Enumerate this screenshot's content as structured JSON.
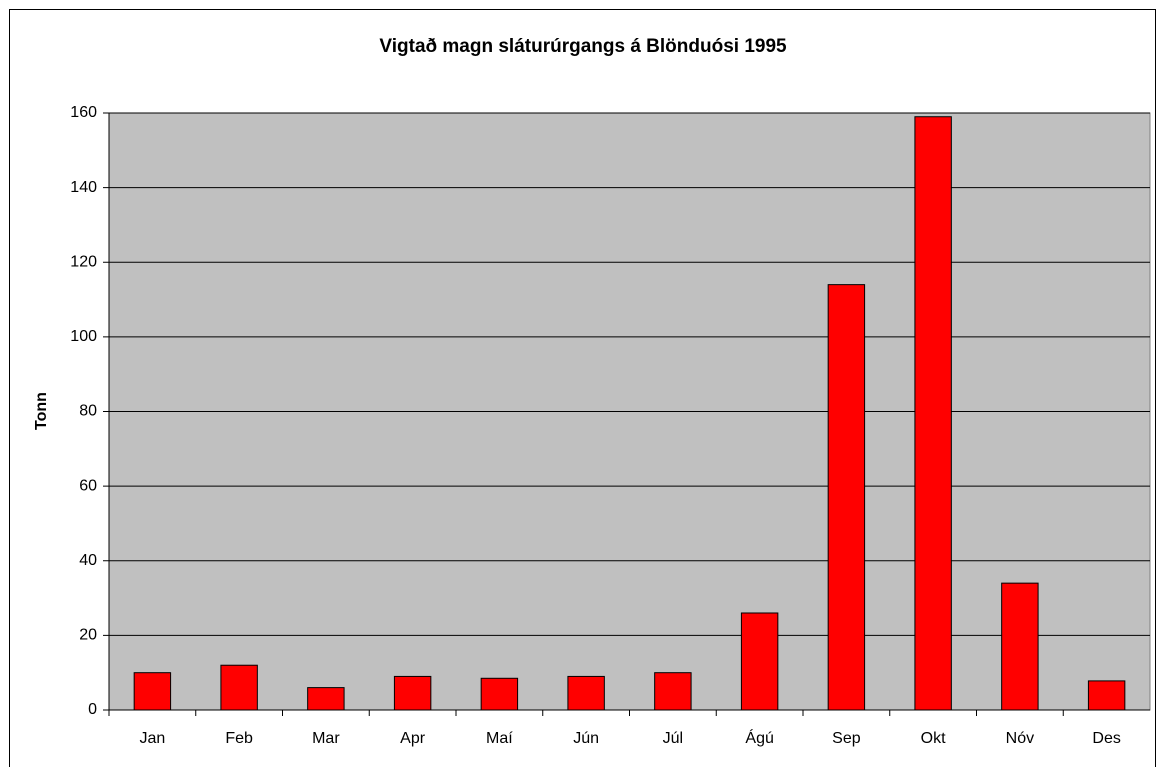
{
  "chart_data": {
    "type": "bar",
    "title": "Vigtað magn sláturúrgangs á Blönduósi 1995",
    "y_label": "Tonn",
    "categories": [
      "Jan",
      "Feb",
      "Mar",
      "Apr",
      "Maí",
      "Jún",
      "Júl",
      "Ágú",
      "Sep",
      "Okt",
      "Nóv",
      "Des"
    ],
    "values": [
      10,
      12,
      6,
      9,
      8.5,
      9,
      10,
      26,
      114,
      159,
      34,
      7.8
    ],
    "color": "#ff0000",
    "ylim": [
      0,
      160
    ],
    "yticks": [
      0,
      20,
      40,
      60,
      80,
      100,
      120,
      140,
      160
    ],
    "grid": true
  }
}
